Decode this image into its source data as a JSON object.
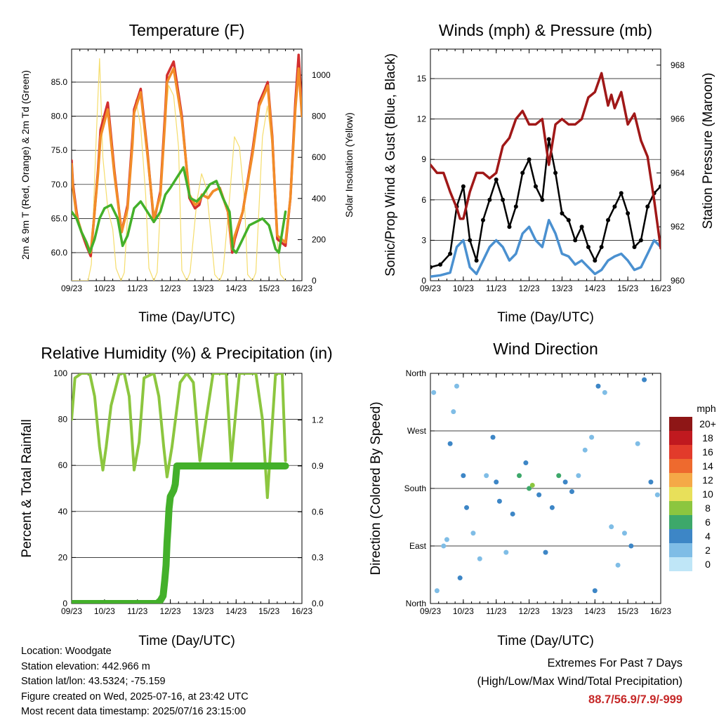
{
  "panels": {
    "temperature": {
      "title": "Temperature (F)",
      "ylabel_left": "2m & 9m T (Red, Orange) & 2m Td (Green)",
      "ylabel_right": "Solar Insolation (Yellow)",
      "xlabel": "Time (Day/UTC)"
    },
    "winds": {
      "title": "Winds (mph) & Pressure (mb)",
      "ylabel_left": "Sonic/Prop Wind & Gust (Blue, Black)",
      "ylabel_right": "Station Pressure (Maroon)",
      "xlabel": "Time (Day/UTC)"
    },
    "humidity": {
      "title": "Relative Humidity (%) & Precipitation (in)",
      "ylabel_left": "Percent & Total Rainfall",
      "xlabel": "Time (Day/UTC)"
    },
    "direction": {
      "title": "Wind Direction",
      "ylabel_left": "Direction (Colored By Speed)",
      "xlabel": "Time (Day/UTC)",
      "colorbar_title": "mph"
    }
  },
  "info": {
    "location": "Location: Woodgate",
    "elevation": "Station elevation: 442.966 m",
    "latlon": "Station lat/lon: 43.5324; -75.159",
    "created": "Figure created on Wed, 2025-07-16, at 23:42 UTC",
    "recent": "Most recent data timestamp: 2025/07/16 23:15:00"
  },
  "extremes": {
    "line1": "Extremes For Past 7 Days",
    "line2": "(High/Low/Max Wind/Total Precipitation)",
    "values": "88.7/56.9/7.9/-999"
  },
  "colors": {
    "temp2m": "#d32f2f",
    "temp9m": "#f28c28",
    "dewpoint": "#43b02a",
    "solar": "#f5dd6c",
    "wind": "#4a90d0",
    "gust": "#000000",
    "pressure": "#a01818",
    "rh": "#8cc63f",
    "precip": "#43b02a"
  },
  "chart_data": [
    {
      "type": "line",
      "title": "Temperature (F)",
      "xlabel": "Time (Day/UTC)",
      "ylabel": "2m & 9m T (Red, Orange) & 2m Td (Green)",
      "ylabel_right": "Solar Insolation (Yellow)",
      "x_ticks": [
        "09/23",
        "10/23",
        "11/23",
        "12/23",
        "13/23",
        "14/23",
        "15/23",
        "16/23"
      ],
      "xlim": [
        0,
        7
      ],
      "ylim": [
        55.8,
        90.4
      ],
      "y_ticks": [
        "60.0",
        "65.0",
        "70.0",
        "75.0",
        "80.0",
        "85.0"
      ],
      "y2lim": [
        0,
        1100
      ],
      "y2_ticks": [
        "0",
        "200",
        "400",
        "600",
        "800",
        "1000"
      ],
      "series": [
        {
          "name": "2m T",
          "color": "#d32f2f",
          "x": [
            0,
            0.04,
            0.15,
            0.2,
            0.3,
            0.45,
            0.58,
            0.68,
            0.8,
            0.88,
            1.1,
            1.3,
            1.52,
            1.7,
            1.85,
            1.9,
            2.1,
            2.3,
            2.5,
            2.7,
            2.85,
            2.9,
            3.1,
            3.35,
            3.58,
            3.75,
            3.88,
            3.96,
            4.15,
            4.3,
            4.5,
            4.75,
            4.88,
            4.96,
            5.2,
            5.5,
            5.7,
            5.88,
            5.96,
            6.1,
            6.25,
            6.5,
            6.65,
            6.8,
            6.9,
            7.0
          ],
          "y": [
            73.5,
            70,
            66,
            64.5,
            63,
            61,
            59.5,
            65,
            72,
            78,
            82,
            72,
            63,
            67,
            77,
            81,
            84,
            75,
            64.5,
            69,
            81,
            86,
            88,
            80,
            68,
            66.5,
            67,
            68.5,
            68,
            69,
            69.5,
            66,
            60,
            62,
            66,
            75,
            82,
            84,
            85,
            77,
            62,
            61,
            68,
            82,
            89,
            81
          ]
        },
        {
          "name": "9m T",
          "color": "#f28c28",
          "x": [
            0,
            0.04,
            0.15,
            0.3,
            0.45,
            0.58,
            0.68,
            0.8,
            0.88,
            1.1,
            1.3,
            1.52,
            1.7,
            1.85,
            1.9,
            2.1,
            2.3,
            2.5,
            2.7,
            2.85,
            2.9,
            3.1,
            3.35,
            3.58,
            3.75,
            3.88,
            3.96,
            4.15,
            4.3,
            4.5,
            4.75,
            4.88,
            4.96,
            5.2,
            5.5,
            5.7,
            5.88,
            5.96,
            6.1,
            6.25,
            6.5,
            6.65,
            6.8,
            6.9,
            7.0
          ],
          "y": [
            73,
            69.5,
            65.5,
            63,
            61.5,
            60,
            65,
            71.5,
            77,
            81,
            71.5,
            63,
            66.5,
            76,
            80.5,
            83.5,
            74.5,
            65,
            68.5,
            80,
            85,
            87,
            79.5,
            68.5,
            67,
            67.5,
            68.5,
            68,
            69,
            69.5,
            66,
            60.5,
            62.5,
            66,
            74.5,
            81.5,
            83.5,
            84.5,
            76.5,
            62.5,
            61.5,
            68,
            81,
            87,
            80
          ]
        },
        {
          "name": "2m Td",
          "color": "#43b02a",
          "x": [
            0,
            0.15,
            0.3,
            0.45,
            0.55,
            0.7,
            0.85,
            1.0,
            1.2,
            1.4,
            1.55,
            1.7,
            1.9,
            2.1,
            2.3,
            2.5,
            2.7,
            2.85,
            3.0,
            3.2,
            3.4,
            3.6,
            3.8,
            4.0,
            4.2,
            4.4,
            4.6,
            4.8,
            4.9,
            5.0,
            5.2,
            5.4,
            5.6,
            5.8,
            6.0,
            6.2,
            6.3,
            6.4,
            6.5
          ],
          "y": [
            66,
            65,
            63,
            61.5,
            60,
            62,
            65,
            66.5,
            67,
            65,
            61,
            62.5,
            66.5,
            67.5,
            66,
            64.5,
            66,
            68.5,
            69.5,
            71,
            72.5,
            68,
            67.5,
            68.5,
            70,
            70.5,
            68,
            66,
            60.5,
            60,
            62,
            64,
            64.5,
            65,
            64,
            60.5,
            60,
            63,
            66
          ]
        },
        {
          "name": "Solar Insolation",
          "color": "#f5dd6c",
          "axis": "right",
          "x": [
            0,
            0.5,
            0.6,
            0.75,
            0.85,
            0.95,
            1.1,
            1.25,
            1.35,
            1.5,
            1.6,
            1.8,
            1.95,
            2.1,
            2.25,
            2.35,
            2.5,
            2.6,
            2.8,
            2.95,
            3.1,
            3.25,
            3.35,
            3.5,
            3.6,
            3.8,
            3.95,
            4.1,
            4.25,
            4.35,
            4.5,
            4.6,
            4.8,
            4.95,
            5.1,
            5.25,
            5.35,
            5.5,
            5.6,
            5.8,
            5.95,
            6.1,
            6.25,
            6.35,
            6.5
          ],
          "y": [
            0,
            0,
            80,
            700,
            1080,
            600,
            350,
            250,
            60,
            0,
            40,
            600,
            880,
            750,
            420,
            60,
            0,
            40,
            700,
            950,
            900,
            650,
            50,
            0,
            40,
            380,
            520,
            450,
            200,
            30,
            0,
            40,
            400,
            700,
            650,
            400,
            30,
            0,
            40,
            700,
            850,
            650,
            200,
            30,
            0
          ]
        }
      ]
    },
    {
      "type": "line",
      "title": "Winds (mph) & Pressure (mb)",
      "xlabel": "Time (Day/UTC)",
      "ylabel": "Sonic/Prop Wind & Gust (Blue, Black)",
      "ylabel_right": "Station Pressure (Maroon)",
      "x_ticks": [
        "09/23",
        "10/23",
        "11/23",
        "12/23",
        "13/23",
        "14/23",
        "15/23",
        "16/23"
      ],
      "xlim": [
        0,
        7
      ],
      "ylim": [
        0,
        17.2
      ],
      "y_ticks": [
        "0",
        "3",
        "6",
        "9",
        "12",
        "15"
      ],
      "y2lim": [
        960,
        968.6
      ],
      "y2_ticks": [
        "960",
        "962",
        "964",
        "966",
        "968"
      ],
      "series": [
        {
          "name": "Sonic/Prop Wind",
          "color": "#4a90d0",
          "x": [
            0,
            0.3,
            0.6,
            0.8,
            1.0,
            1.2,
            1.4,
            1.6,
            1.8,
            2.0,
            2.2,
            2.4,
            2.6,
            2.8,
            3.0,
            3.2,
            3.4,
            3.6,
            3.8,
            4.0,
            4.2,
            4.4,
            4.6,
            4.8,
            5.0,
            5.2,
            5.4,
            5.6,
            5.8,
            6.0,
            6.2,
            6.4,
            6.6,
            6.8,
            7.0
          ],
          "y": [
            0.3,
            0.4,
            0.6,
            2.5,
            3.0,
            1.0,
            0.5,
            1.5,
            2.5,
            3.0,
            2.5,
            1.5,
            2.0,
            3.5,
            4.0,
            3.0,
            2.5,
            4.5,
            3.5,
            2.0,
            1.8,
            1.2,
            1.5,
            1.0,
            0.5,
            0.8,
            1.5,
            1.8,
            2.0,
            1.5,
            0.8,
            1.0,
            2.0,
            3.0,
            2.5
          ]
        },
        {
          "name": "Gust",
          "color": "#000000",
          "x": [
            0,
            0.3,
            0.6,
            0.8,
            1.0,
            1.2,
            1.4,
            1.6,
            1.8,
            2.0,
            2.2,
            2.4,
            2.6,
            2.8,
            3.0,
            3.2,
            3.4,
            3.6,
            3.8,
            4.0,
            4.2,
            4.4,
            4.6,
            4.8,
            5.0,
            5.2,
            5.4,
            5.6,
            5.8,
            6.0,
            6.2,
            6.4,
            6.6,
            6.8,
            7.0
          ],
          "y": [
            1.0,
            1.2,
            2.0,
            5.5,
            7.0,
            3.0,
            1.5,
            4.5,
            6.0,
            7.5,
            6.0,
            4.0,
            5.5,
            8.0,
            9.0,
            7.0,
            6.0,
            10.5,
            8.0,
            5.0,
            4.5,
            3.0,
            4.0,
            2.5,
            1.5,
            2.5,
            4.5,
            5.5,
            6.5,
            5.0,
            2.5,
            3.0,
            5.5,
            6.5,
            7.0
          ]
        },
        {
          "name": "Station Pressure",
          "color": "#a01818",
          "axis": "right",
          "x": [
            0,
            0.2,
            0.4,
            0.6,
            0.8,
            0.9,
            1.0,
            1.2,
            1.4,
            1.6,
            1.8,
            2.0,
            2.2,
            2.4,
            2.6,
            2.8,
            3.0,
            3.2,
            3.4,
            3.6,
            3.8,
            4.0,
            4.2,
            4.4,
            4.6,
            4.8,
            5.0,
            5.2,
            5.4,
            5.5,
            5.6,
            5.8,
            6.0,
            6.2,
            6.4,
            6.6,
            6.8,
            7.0
          ],
          "y": [
            964.3,
            964.0,
            964.0,
            963.3,
            962.7,
            962.3,
            962.3,
            963.3,
            964.0,
            964.0,
            963.8,
            964.0,
            965.0,
            965.3,
            966.0,
            966.3,
            965.8,
            965.8,
            966.0,
            964.3,
            965.8,
            966.0,
            965.8,
            965.8,
            966.0,
            966.8,
            967.0,
            967.7,
            966.5,
            966.9,
            966.4,
            967.0,
            965.8,
            966.2,
            965.2,
            964.6,
            963.0,
            961.2
          ]
        }
      ]
    },
    {
      "type": "line",
      "title": "Relative Humidity (%) & Precipitation (in)",
      "xlabel": "Time (Day/UTC)",
      "ylabel": "Percent & Total Rainfall",
      "x_ticks": [
        "09/23",
        "10/23",
        "11/23",
        "12/23",
        "13/23",
        "14/23",
        "15/23",
        "16/23"
      ],
      "xlim": [
        0,
        7
      ],
      "ylim": [
        0,
        100
      ],
      "y_ticks": [
        "0",
        "20",
        "40",
        "60",
        "80",
        "100"
      ],
      "y2lim": [
        0,
        1.5
      ],
      "y2_ticks": [
        "0.0",
        "0.3",
        "0.6",
        "0.9",
        "1.2"
      ],
      "series": [
        {
          "name": "Relative Humidity",
          "color": "#8cc63f",
          "x": [
            0,
            0.1,
            0.3,
            0.55,
            0.7,
            0.85,
            0.95,
            1.05,
            1.2,
            1.45,
            1.6,
            1.75,
            1.9,
            2.05,
            2.2,
            2.5,
            2.65,
            2.8,
            2.9,
            3.05,
            3.3,
            3.5,
            3.7,
            3.9,
            4.3,
            4.5,
            4.7,
            4.85,
            5.1,
            5.4,
            5.6,
            5.8,
            5.95,
            6.2,
            6.4,
            6.5
          ],
          "y": [
            80,
            98,
            100,
            100,
            90,
            68,
            58,
            68,
            86,
            100,
            100,
            90,
            58,
            70,
            98,
            100,
            90,
            68,
            55,
            68,
            96,
            100,
            96,
            62,
            100,
            100,
            100,
            62,
            100,
            100,
            100,
            80,
            46,
            100,
            100,
            62
          ]
        },
        {
          "name": "Total Precipitation",
          "color": "#43b02a",
          "axis": "right",
          "x": [
            0,
            2.6,
            2.7,
            2.78,
            2.83,
            2.87,
            2.9,
            2.93,
            2.96,
            3.0,
            3.1,
            3.15,
            3.2,
            6.5
          ],
          "y": [
            0,
            0,
            0.02,
            0.05,
            0.15,
            0.25,
            0.4,
            0.5,
            0.62,
            0.7,
            0.74,
            0.78,
            0.9,
            0.9
          ]
        }
      ]
    },
    {
      "type": "scatter",
      "title": "Wind Direction",
      "xlabel": "Time (Day/UTC)",
      "ylabel": "Direction (Colored By Speed)",
      "x_ticks": [
        "09/23",
        "10/23",
        "11/23",
        "12/23",
        "13/23",
        "14/23",
        "15/23",
        "16/23"
      ],
      "xlim": [
        0,
        7
      ],
      "ylim": [
        0,
        360
      ],
      "y_ticks": [
        "North",
        "East",
        "South",
        "West",
        "North"
      ],
      "colorbar": {
        "title": "mph",
        "labels": [
          "0",
          "2",
          "4",
          "6",
          "8",
          "10",
          "12",
          "14",
          "16",
          "18",
          "20+"
        ],
        "colors": [
          "#bfe6f7",
          "#7fbde6",
          "#3d86c6",
          "#3da86a",
          "#8cc63f",
          "#e8e05a",
          "#f5a947",
          "#ee6a2e",
          "#e23b2b",
          "#c0191f",
          "#8e1616"
        ]
      },
      "series": [
        {
          "name": "Direction",
          "x": [
            0.1,
            0.2,
            0.4,
            0.5,
            0.6,
            0.7,
            0.8,
            0.9,
            1.0,
            1.1,
            1.3,
            1.5,
            1.7,
            1.9,
            2.0,
            2.1,
            2.3,
            2.5,
            2.7,
            2.9,
            3.0,
            3.1,
            3.3,
            3.5,
            3.7,
            3.9,
            4.1,
            4.3,
            4.5,
            4.7,
            4.9,
            5.0,
            5.1,
            5.3,
            5.5,
            5.7,
            5.9,
            6.1,
            6.3,
            6.5,
            6.7,
            6.9
          ],
          "y": [
            330,
            20,
            90,
            100,
            250,
            300,
            340,
            40,
            200,
            150,
            110,
            70,
            200,
            260,
            190,
            160,
            80,
            140,
            200,
            220,
            180,
            185,
            170,
            80,
            150,
            200,
            190,
            175,
            200,
            240,
            260,
            20,
            340,
            330,
            120,
            60,
            110,
            90,
            250,
            350,
            190,
            170
          ],
          "speed": [
            1,
            1,
            1,
            2,
            3,
            2,
            2,
            3,
            4,
            3,
            1,
            1,
            2,
            3,
            4,
            4,
            1,
            3,
            5,
            4,
            5,
            7,
            4,
            3,
            4,
            5,
            4,
            3,
            2,
            2,
            1,
            3,
            4,
            2,
            1,
            1,
            2,
            3,
            2,
            4,
            3,
            2
          ]
        }
      ]
    }
  ]
}
